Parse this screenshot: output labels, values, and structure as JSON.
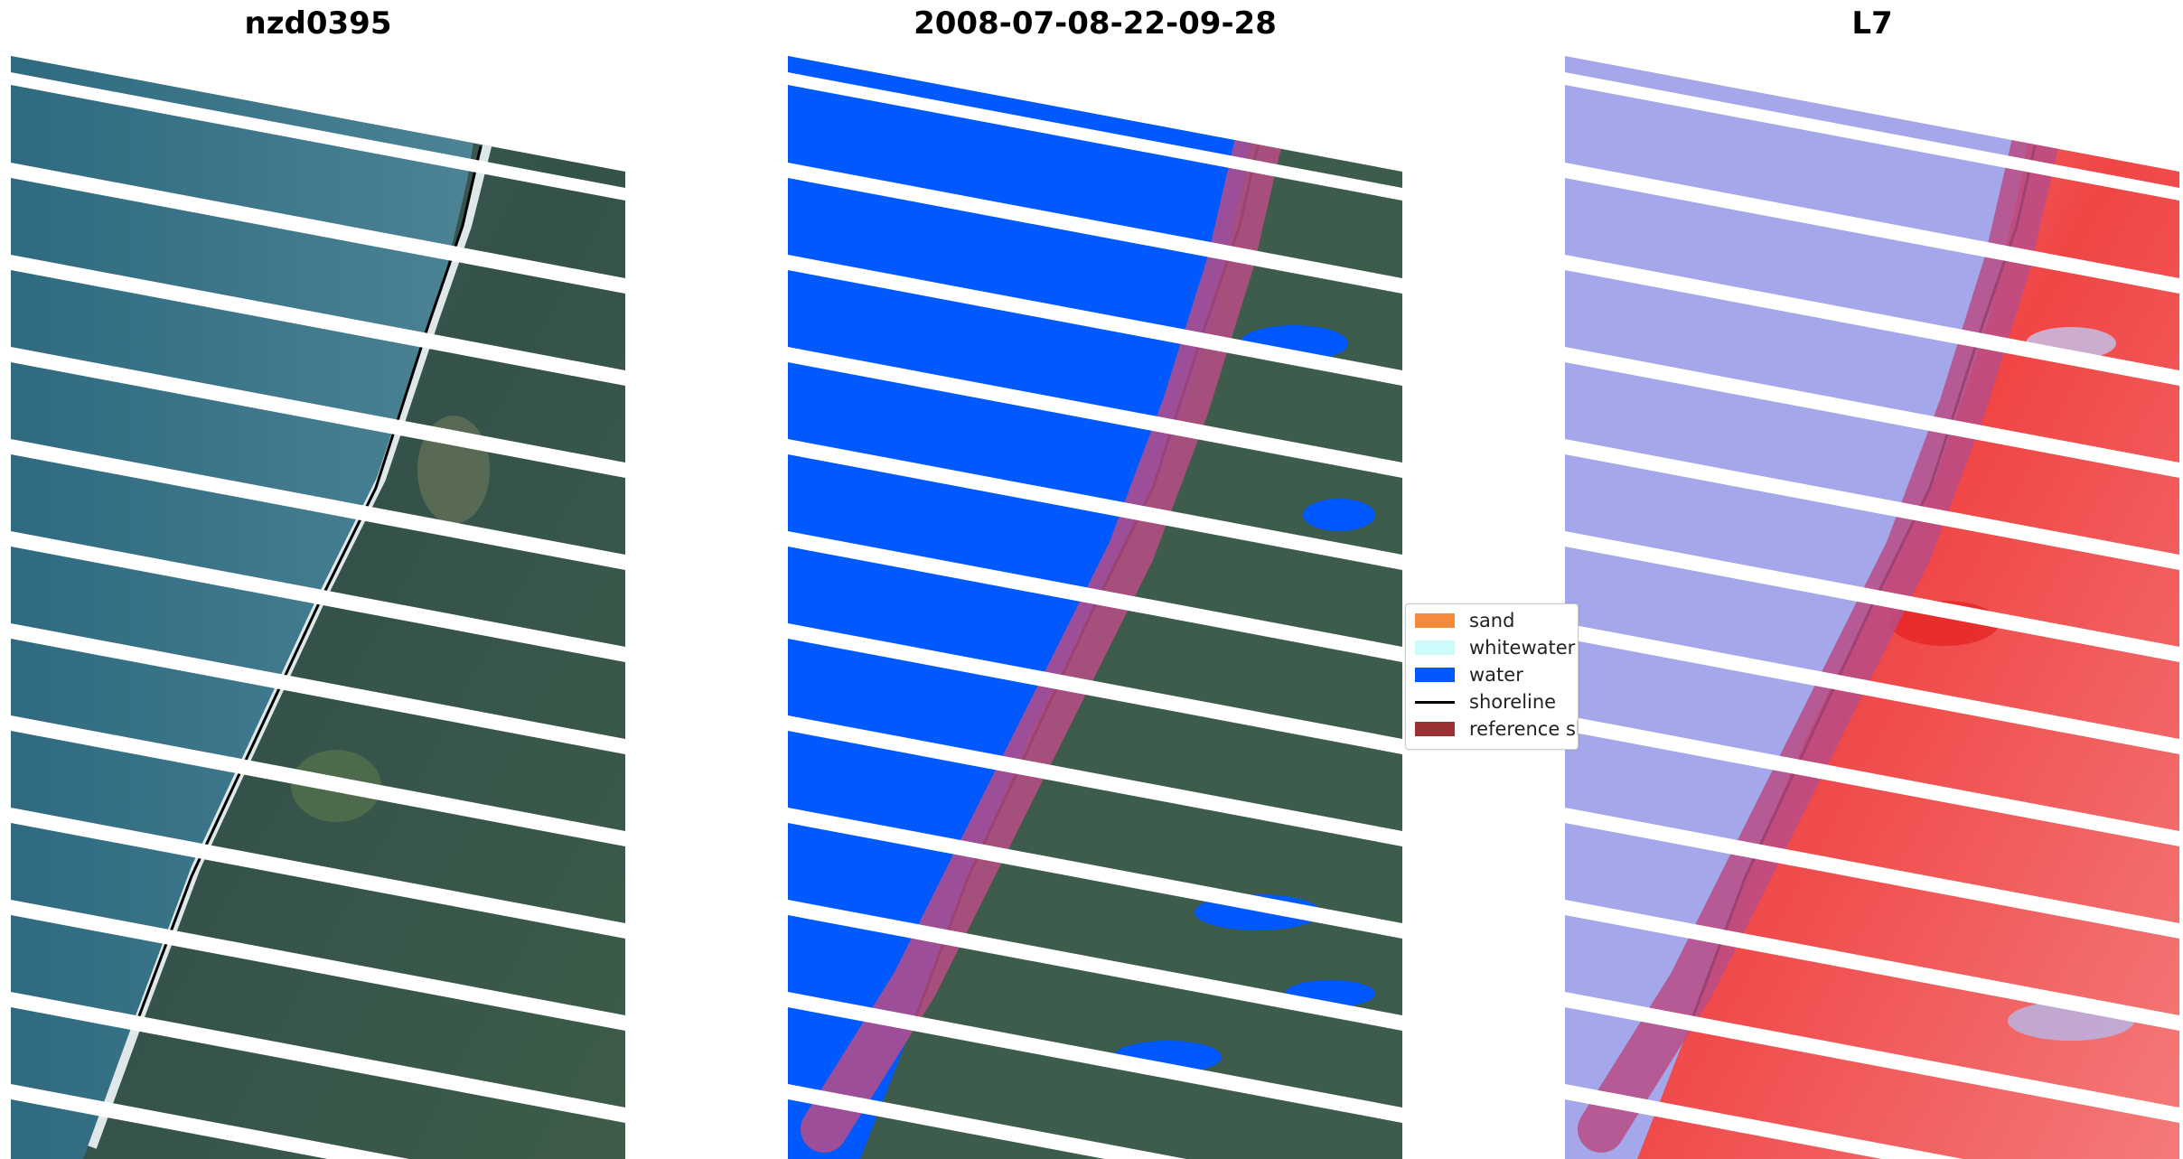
{
  "panels": [
    {
      "title": "nzd0395"
    },
    {
      "title": "2008-07-08-22-09-28"
    },
    {
      "title": "L7"
    }
  ],
  "legend": {
    "items": [
      {
        "label": "sand",
        "color": "#f58a3b"
      },
      {
        "label": "whitewater",
        "color": "#ccfbfb"
      },
      {
        "label": "water",
        "color": "#0059ff"
      },
      {
        "label": "shoreline",
        "color": "#000000"
      },
      {
        "label": "reference shoreline buffer",
        "color": "#9b2f34"
      }
    ]
  },
  "colors": {
    "ocean": "#3f7488",
    "land": "#3b5a4f",
    "water_class": "#0059ff",
    "buffer": "#b84c86",
    "index_blue": "#9a9ee6",
    "index_red": "#f04040"
  }
}
